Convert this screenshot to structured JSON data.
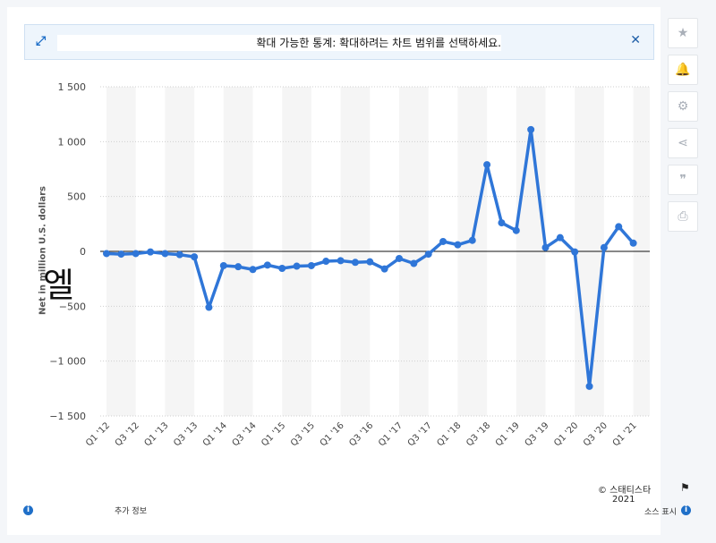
{
  "banner": {
    "text": "확대 가능한 통계: 확대하려는 차트 범위를 선택하세요.",
    "expand_icon": "expand-arrows-icon",
    "close_label": "✕"
  },
  "sidebar": {
    "buttons": [
      {
        "name": "favorite-star-icon",
        "glyph": "★"
      },
      {
        "name": "notification-bell-icon",
        "glyph": "🔔"
      },
      {
        "name": "settings-gear-icon",
        "glyph": "⚙"
      },
      {
        "name": "share-icon",
        "glyph": "⋖"
      },
      {
        "name": "cite-quote-icon",
        "glyph": "❞"
      },
      {
        "name": "print-icon",
        "glyph": "⎙"
      }
    ]
  },
  "overlay_glyph": "엘",
  "footer": {
    "copyright": "© 스태티스타",
    "year": "2021",
    "more_info": "추가 정보",
    "source": "소스 표시"
  },
  "colors": {
    "line": "#2f76d8",
    "grid": "#cfcfcf",
    "band": "#f5f5f5",
    "banner_bg": "#eef5fc"
  },
  "chart_data": {
    "type": "line",
    "ylabel": "Net income in million U.S. dollars",
    "ylabel_visible": "Net                    in million U.S. dollars",
    "ylim": [
      -1500,
      1500
    ],
    "yticks": [
      1500,
      1000,
      500,
      0,
      -500,
      -1000,
      -1500
    ],
    "ytick_labels": [
      "1 500",
      "1 000",
      "500",
      "0",
      "−500",
      "−1 000",
      "−1 500"
    ],
    "grid": true,
    "x_tick_labels": [
      "Q1 '12",
      "Q3 '12",
      "Q1 '13",
      "Q3 '13",
      "Q1 '14",
      "Q3 '14",
      "Q1 '15",
      "Q3 '15",
      "Q1 '16",
      "Q3 '16",
      "Q1 '17",
      "Q3 '17",
      "Q1 '18",
      "Q3 '18",
      "Q1 '19",
      "Q3 '19",
      "Q1 '20",
      "Q3 '20",
      "Q1 '21"
    ],
    "categories": [
      "Q1 '12",
      "Q2 '12",
      "Q3 '12",
      "Q4 '12",
      "Q1 '13",
      "Q2 '13",
      "Q3 '13",
      "Q4 '13",
      "Q1 '14",
      "Q2 '14",
      "Q3 '14",
      "Q4 '14",
      "Q1 '15",
      "Q2 '15",
      "Q3 '15",
      "Q4 '15",
      "Q1 '16",
      "Q2 '16",
      "Q3 '16",
      "Q4 '16",
      "Q1 '17",
      "Q2 '17",
      "Q3 '17",
      "Q4 '17",
      "Q1 '18",
      "Q2 '18",
      "Q3 '18",
      "Q4 '18",
      "Q1 '19",
      "Q2 '19",
      "Q3 '19",
      "Q4 '19",
      "Q1 '20",
      "Q2 '20",
      "Q3 '20",
      "Q4 '20",
      "Q1 '21"
    ],
    "values": [
      -20,
      -25,
      -20,
      -5,
      -20,
      -30,
      -50,
      -510,
      -130,
      -140,
      -165,
      -125,
      -155,
      -135,
      -130,
      -90,
      -85,
      -100,
      -95,
      -160,
      -65,
      -110,
      -25,
      90,
      60,
      100,
      790,
      260,
      190,
      1110,
      35,
      125,
      -5,
      -1230,
      35,
      225,
      75
    ]
  }
}
